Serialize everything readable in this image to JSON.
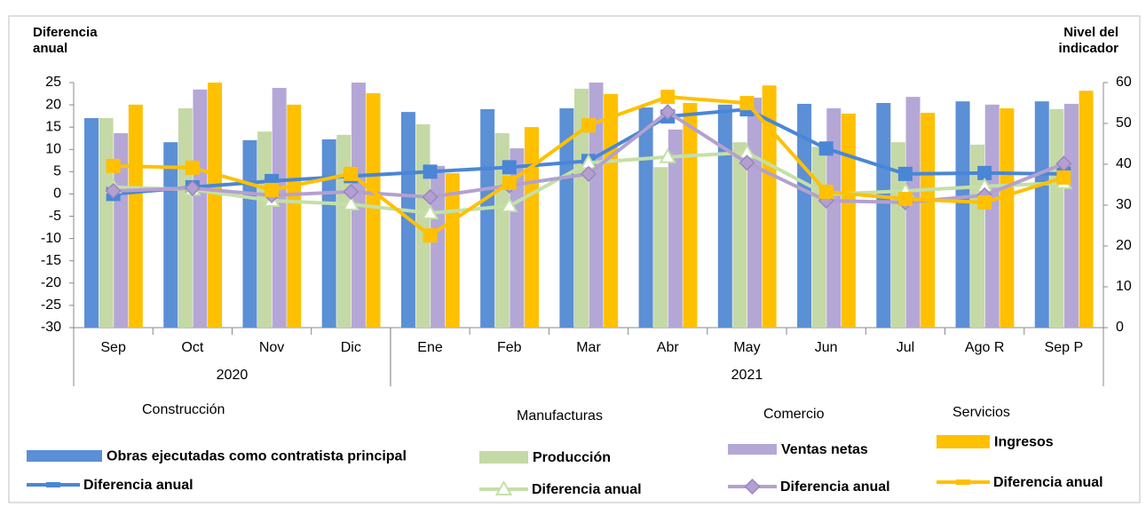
{
  "chart_data": {
    "type": "bar",
    "y_label": "Diferencia anual",
    "y2_label": "Nivel del indicador",
    "categories": [
      "Sep",
      "Oct",
      "Nov",
      "Dic",
      "Ene",
      "Feb",
      "Mar",
      "Abr",
      "May",
      "Jun",
      "Jul",
      "Ago R",
      "Sep P"
    ],
    "category_groups": [
      {
        "label": "2020",
        "count": 4
      },
      {
        "label": "2021",
        "count": 9
      }
    ],
    "legend_groups": [
      "Construcción",
      "Manufacturas",
      "Comercio",
      "Servicios"
    ],
    "ylim": [
      -30,
      25
    ],
    "yticks": [
      -30,
      -25,
      -20,
      -15,
      -10,
      -5,
      0,
      5,
      10,
      15,
      20,
      25
    ],
    "y2lim": [
      0,
      60
    ],
    "y2ticks": [
      0,
      10,
      20,
      30,
      40,
      50,
      60
    ],
    "series": [
      {
        "name": "Obras ejecutadas como contratista principal",
        "type": "bar",
        "axis": "y2",
        "color": "#5b8fd6",
        "values": [
          51.3,
          45.4,
          45.9,
          46.1,
          52.8,
          53.5,
          53.7,
          53.9,
          54.6,
          54.8,
          55.0,
          55.4,
          55.4
        ]
      },
      {
        "name": "Producción",
        "type": "bar",
        "axis": "y2",
        "color": "#c4d9a6",
        "values": [
          51.3,
          53.7,
          48.0,
          47.2,
          49.8,
          47.6,
          58.5,
          39.3,
          45.4,
          44.3,
          45.4,
          44.8,
          53.5
        ]
      },
      {
        "name": "Ventas netas",
        "type": "bar",
        "axis": "y2",
        "color": "#b4a7d6",
        "values": [
          47.6,
          58.3,
          58.7,
          60,
          39.6,
          43.9,
          60,
          48.5,
          56.3,
          53.7,
          56.5,
          54.6,
          54.8
        ]
      },
      {
        "name": "Ingresos",
        "type": "bar",
        "axis": "y2",
        "color": "#ffc000",
        "values": [
          54.6,
          60,
          54.6,
          57.4,
          37.8,
          49.1,
          57.2,
          55.0,
          59.3,
          52.4,
          52.6,
          53.7,
          58.0
        ]
      },
      {
        "name": "Diferencia anual",
        "type": "line",
        "marker": "square",
        "color": "#4a86d6",
        "values": [
          0,
          1.5,
          2.9,
          4,
          5,
          6,
          7.4,
          17.4,
          19,
          10.2,
          4.5,
          4.7,
          4.5
        ]
      },
      {
        "name": "Diferencia anual",
        "type": "line",
        "marker": "triangle",
        "color": "#c4e0a6",
        "values": [
          1.5,
          1,
          -1.5,
          -2.3,
          -4.3,
          -2.7,
          7,
          8.3,
          9.3,
          -0.1,
          0.7,
          1.7,
          2.5
        ]
      },
      {
        "name": "Diferencia anual",
        "type": "line",
        "marker": "diamond",
        "color": "#b4a0d0",
        "values": [
          0.7,
          1.3,
          -0.3,
          0.5,
          -0.7,
          1.9,
          4.5,
          18.4,
          7,
          -1.5,
          -1.9,
          -0.3,
          6.8
        ]
      },
      {
        "name": "Diferencia anual",
        "type": "line",
        "marker": "square",
        "color": "#ffc000",
        "values": [
          6.3,
          5.9,
          0.9,
          4.5,
          -9.3,
          2.5,
          15.4,
          21.8,
          20.4,
          0.5,
          -1.1,
          -1.9,
          3.7
        ]
      }
    ]
  }
}
